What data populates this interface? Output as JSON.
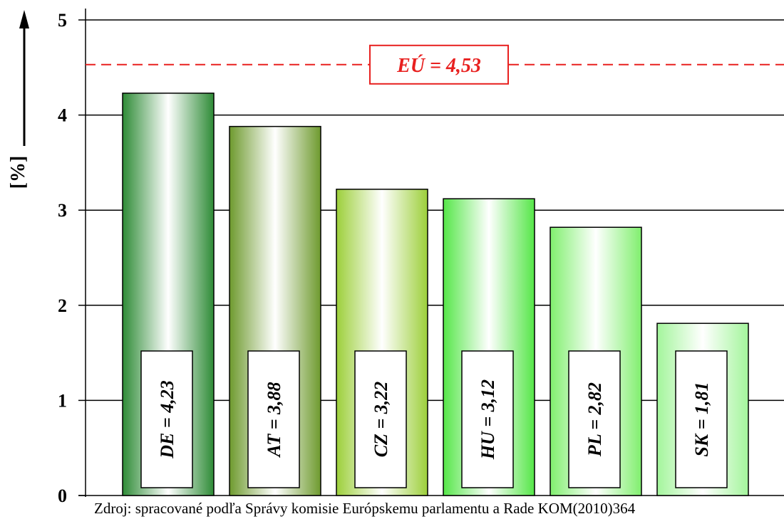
{
  "chart_data": {
    "type": "bar",
    "categories": [
      "DE",
      "AT",
      "CZ",
      "HU",
      "PL",
      "SK"
    ],
    "values": [
      4.23,
      3.88,
      3.22,
      3.12,
      2.82,
      1.81
    ],
    "bar_labels": [
      "DE = 4,23",
      "AT = 3,88",
      "CZ = 3,22",
      "HU = 3,12",
      "PL = 2,82",
      "SK = 1,81"
    ],
    "ylabel": "[%]",
    "ylim": [
      0,
      5
    ],
    "yticks": [
      "0",
      "1",
      "2",
      "3",
      "4",
      "5"
    ],
    "grid": true,
    "reference_line": {
      "value": 4.53,
      "label": "EÚ = 4,53",
      "color": "#e8201f"
    },
    "bar_colors": [
      "#2e8b36",
      "#6e9a2e",
      "#9ccf3a",
      "#55e648",
      "#80ef6e",
      "#a3f59b"
    ],
    "source": "Zdroj: spracované podľa Správy komisie Európskemu parlamentu a Rade KOM(2010)364"
  }
}
